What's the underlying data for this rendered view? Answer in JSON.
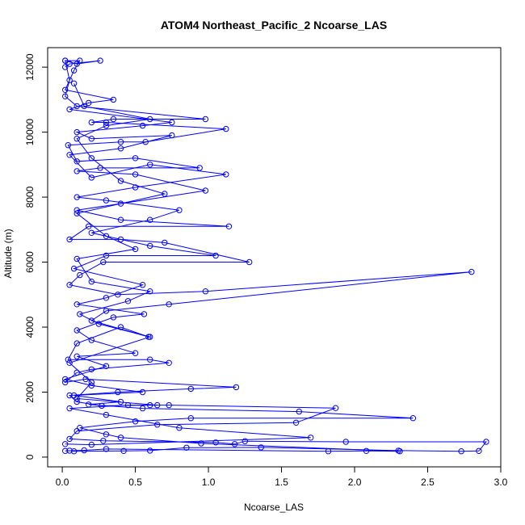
{
  "colors": {
    "series": "#0000ff",
    "axis": "#000000",
    "background": "#ffffff"
  },
  "chart_data": {
    "type": "line",
    "title": "ATOM4 Northeast_Pacific_2 Ncoarse_LAS",
    "xlabel": "Ncoarse_LAS",
    "ylabel": "Altitude (m)",
    "xlim": [
      -0.1,
      3.0
    ],
    "ylim": [
      -300,
      12600
    ],
    "xticks": [
      0.0,
      0.5,
      1.0,
      1.5,
      2.0,
      2.5,
      3.0
    ],
    "xtick_labels": [
      "0.0",
      "0.5",
      "1.0",
      "1.5",
      "2.0",
      "2.5",
      "3.0"
    ],
    "yticks": [
      0,
      2000,
      4000,
      6000,
      8000,
      10000,
      12000
    ],
    "ytick_labels": [
      "0",
      "2000",
      "4000",
      "6000",
      "8000",
      "10000",
      "12000"
    ],
    "marker": "open-circle",
    "grid": false,
    "legend": "none",
    "series": [
      {
        "points": [
          [
            0.05,
            200
          ],
          [
            0.08,
            180
          ],
          [
            0.42,
            190
          ],
          [
            0.6,
            200
          ],
          [
            0.85,
            290
          ],
          [
            1.36,
            300
          ],
          [
            2.3,
            200
          ],
          [
            2.73,
            180
          ],
          [
            2.85,
            190
          ],
          [
            2.9,
            470
          ],
          [
            1.94,
            470
          ],
          [
            1.25,
            490
          ],
          [
            1.18,
            400
          ],
          [
            1.05,
            450
          ],
          [
            0.28,
            500
          ],
          [
            0.05,
            560
          ],
          [
            0.1,
            800
          ],
          [
            0.65,
            1000
          ],
          [
            1.6,
            1060
          ],
          [
            1.87,
            1510
          ],
          [
            0.73,
            1600
          ],
          [
            0.6,
            1600
          ],
          [
            0.27,
            1580
          ],
          [
            0.1,
            1700
          ],
          [
            0.05,
            1900
          ],
          [
            0.38,
            2000
          ],
          [
            0.88,
            2100
          ],
          [
            1.19,
            2150
          ],
          [
            0.16,
            2400
          ],
          [
            0.02,
            2300
          ],
          [
            0.1,
            2600
          ],
          [
            0.2,
            2700
          ],
          [
            0.73,
            2900
          ],
          [
            0.6,
            3000
          ],
          [
            0.04,
            3000
          ],
          [
            0.1,
            3500
          ],
          [
            0.4,
            4000
          ],
          [
            0.59,
            3700
          ],
          [
            0.2,
            4200
          ],
          [
            0.3,
            4500
          ],
          [
            0.73,
            4700
          ],
          [
            2.8,
            5700
          ],
          [
            0.98,
            5100
          ],
          [
            0.38,
            5000
          ],
          [
            0.05,
            5300
          ],
          [
            0.12,
            5600
          ],
          [
            0.28,
            6000
          ],
          [
            1.28,
            6000
          ],
          [
            0.7,
            6600
          ],
          [
            0.4,
            6700
          ],
          [
            0.05,
            6700
          ],
          [
            0.18,
            7100
          ],
          [
            1.14,
            7100
          ],
          [
            0.4,
            7300
          ],
          [
            0.1,
            7600
          ],
          [
            0.4,
            7800
          ],
          [
            0.98,
            8200
          ],
          [
            0.5,
            8700
          ],
          [
            0.1,
            8800
          ],
          [
            0.26,
            8900
          ],
          [
            0.94,
            8900
          ],
          [
            0.5,
            9200
          ],
          [
            0.1,
            9100
          ],
          [
            0.04,
            9600
          ],
          [
            0.4,
            9700
          ],
          [
            0.57,
            9700
          ],
          [
            1.12,
            10100
          ],
          [
            0.3,
            10300
          ],
          [
            0.2,
            10300
          ],
          [
            0.35,
            10400
          ],
          [
            0.98,
            10400
          ],
          [
            0.1,
            10800
          ],
          [
            0.02,
            11100
          ],
          [
            0.05,
            11600
          ],
          [
            0.02,
            12200
          ],
          [
            0.1,
            12100
          ],
          [
            0.26,
            12200
          ],
          [
            0.05,
            12100
          ],
          [
            0.02,
            12000
          ]
        ]
      },
      {
        "points": [
          [
            0.02,
            190
          ],
          [
            0.15,
            210
          ],
          [
            0.3,
            250
          ],
          [
            1.82,
            180
          ],
          [
            2.08,
            190
          ],
          [
            2.31,
            180
          ],
          [
            0.95,
            420
          ],
          [
            0.4,
            600
          ],
          [
            0.3,
            700
          ],
          [
            0.12,
            900
          ],
          [
            0.5,
            1100
          ],
          [
            0.88,
            1200
          ],
          [
            2.4,
            1200
          ],
          [
            1.62,
            1400
          ],
          [
            0.55,
            1500
          ],
          [
            0.18,
            1620
          ],
          [
            0.4,
            1700
          ],
          [
            0.08,
            1900
          ],
          [
            0.55,
            2000
          ],
          [
            0.2,
            2200
          ],
          [
            0.02,
            2400
          ],
          [
            0.3,
            2800
          ],
          [
            0.1,
            3100
          ],
          [
            0.5,
            3200
          ],
          [
            0.2,
            3600
          ],
          [
            0.1,
            3900
          ],
          [
            0.35,
            4300
          ],
          [
            0.56,
            4400
          ],
          [
            0.1,
            4700
          ],
          [
            0.3,
            4900
          ],
          [
            0.55,
            5300
          ],
          [
            0.08,
            5800
          ],
          [
            0.3,
            6200
          ],
          [
            1.05,
            6200
          ],
          [
            0.6,
            6500
          ],
          [
            0.2,
            6900
          ],
          [
            0.6,
            7300
          ],
          [
            0.8,
            7600
          ],
          [
            0.3,
            7900
          ],
          [
            0.1,
            8000
          ],
          [
            0.5,
            8300
          ],
          [
            1.12,
            8700
          ],
          [
            0.6,
            9000
          ],
          [
            0.2,
            8600
          ],
          [
            0.05,
            9300
          ],
          [
            0.4,
            9500
          ],
          [
            0.75,
            9900
          ],
          [
            0.2,
            9800
          ],
          [
            0.1,
            10000
          ],
          [
            0.55,
            10200
          ],
          [
            0.75,
            10300
          ],
          [
            0.05,
            10700
          ],
          [
            0.18,
            10900
          ],
          [
            0.35,
            11000
          ],
          [
            0.02,
            11300
          ],
          [
            0.08,
            11900
          ],
          [
            0.12,
            12200
          ],
          [
            0.02,
            12200
          ]
        ]
      },
      {
        "points": [
          [
            0.02,
            400
          ],
          [
            0.2,
            380
          ],
          [
            1.7,
            600
          ],
          [
            0.8,
            900
          ],
          [
            0.3,
            1300
          ],
          [
            0.05,
            1500
          ],
          [
            0.45,
            1600
          ],
          [
            0.65,
            1600
          ],
          [
            0.1,
            1800
          ],
          [
            0.2,
            2300
          ],
          [
            0.05,
            2900
          ],
          [
            0.6,
            3700
          ],
          [
            0.25,
            4100
          ],
          [
            0.12,
            4400
          ],
          [
            0.45,
            4800
          ],
          [
            0.6,
            5100
          ],
          [
            0.2,
            5400
          ],
          [
            0.1,
            6100
          ],
          [
            0.5,
            6400
          ],
          [
            0.3,
            6800
          ],
          [
            0.1,
            7500
          ],
          [
            0.7,
            8100
          ],
          [
            0.4,
            8500
          ],
          [
            0.2,
            9200
          ],
          [
            0.1,
            9800
          ],
          [
            0.3,
            10200
          ],
          [
            0.6,
            10400
          ],
          [
            0.15,
            10800
          ],
          [
            0.08,
            11500
          ]
        ]
      }
    ]
  }
}
